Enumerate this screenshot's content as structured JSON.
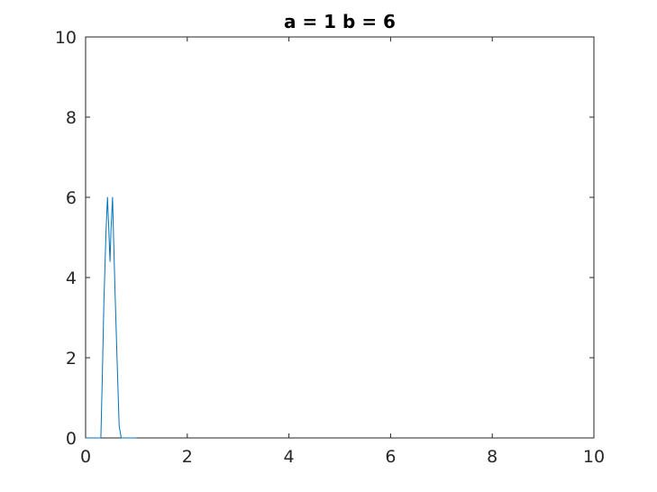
{
  "chart_data": {
    "type": "line",
    "title": "a = 1 b = 6",
    "xlabel": "",
    "ylabel": "",
    "xlim": [
      0,
      10
    ],
    "ylim": [
      0,
      10
    ],
    "xticks": [
      0,
      2,
      4,
      6,
      8,
      10
    ],
    "yticks": [
      0,
      2,
      4,
      6,
      8,
      10
    ],
    "xtick_labels": [
      "0",
      "2",
      "4",
      "6",
      "8",
      "10"
    ],
    "ytick_labels": [
      "0",
      "2",
      "4",
      "6",
      "8",
      "10"
    ],
    "grid": false,
    "box": true,
    "series": [
      {
        "color": "#0072BD",
        "x": [
          0,
          0.05,
          0.1,
          0.15,
          0.2,
          0.25,
          0.3,
          0.33,
          0.36,
          0.4,
          0.43,
          0.45,
          0.48,
          0.5,
          0.53,
          0.55,
          0.58,
          0.62,
          0.66,
          0.7,
          0.75,
          0.8,
          0.85,
          0.9,
          0.95,
          1.0
        ],
        "y": [
          0,
          0,
          0,
          0,
          0,
          0,
          0,
          1.6,
          3.4,
          5.1,
          6.0,
          5.4,
          4.4,
          5.2,
          6.0,
          5.0,
          3.6,
          1.9,
          0.3,
          0,
          0,
          0,
          0,
          0,
          0,
          0
        ]
      }
    ]
  }
}
